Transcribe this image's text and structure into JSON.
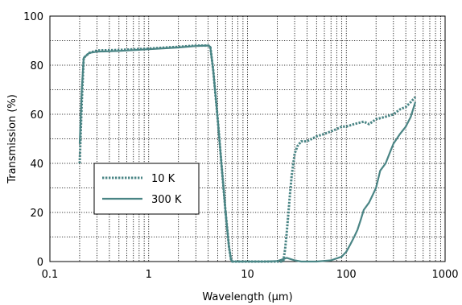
{
  "chart_data": {
    "type": "line",
    "xlabel": "Wavelength (µm)",
    "ylabel": "Transmission (%)",
    "xscale": "log",
    "xlim": [
      0.1,
      1000
    ],
    "ylim": [
      0,
      100
    ],
    "xticks": [
      0.1,
      1,
      10,
      100,
      1000
    ],
    "xtick_labels": [
      "0.1",
      "1",
      "10",
      "100",
      "1000"
    ],
    "yticks": [
      0,
      20,
      40,
      60,
      80,
      100
    ],
    "ytick_labels": [
      "0",
      "20",
      "40",
      "60",
      "80",
      "100"
    ],
    "grid": true,
    "grid_style": "dotted",
    "line_color": "#4a8585",
    "legend_position": "center-left",
    "series": [
      {
        "name": "10 K",
        "style": "dotted",
        "x": [
          0.2,
          0.21,
          0.22,
          0.25,
          0.3,
          0.5,
          1,
          2,
          3,
          4,
          4.2,
          4.5,
          5,
          5.5,
          6,
          6.5,
          6.8,
          7,
          8,
          10,
          15,
          20,
          23,
          24,
          25,
          26,
          27,
          28,
          30,
          32,
          35,
          40,
          50,
          60,
          70,
          80,
          90,
          100,
          120,
          150,
          170,
          200,
          250,
          300,
          350,
          400,
          450,
          500
        ],
        "y": [
          40,
          65,
          83,
          85,
          86,
          86.2,
          86.8,
          87.5,
          88,
          88,
          87.5,
          78,
          58,
          38,
          20,
          6,
          1,
          0,
          0,
          0,
          0,
          0,
          0,
          5,
          12,
          20,
          28,
          35,
          44,
          47,
          49,
          49,
          51,
          52,
          53,
          54,
          55,
          55,
          56,
          57,
          56,
          58,
          59,
          60,
          62,
          63,
          65,
          67
        ]
      },
      {
        "name": "300 K",
        "style": "solid",
        "x": [
          0.2,
          0.21,
          0.22,
          0.25,
          0.3,
          0.5,
          1,
          2,
          3,
          4,
          4.2,
          4.5,
          5,
          5.5,
          6,
          6.5,
          6.8,
          7,
          8,
          10,
          15,
          20,
          25,
          30,
          35,
          50,
          70,
          90,
          100,
          110,
          120,
          130,
          140,
          150,
          170,
          200,
          220,
          250,
          280,
          300,
          350,
          400,
          450,
          500
        ],
        "y": [
          48,
          70,
          83,
          85,
          85.5,
          85.8,
          86.5,
          87.2,
          87.8,
          88,
          87.5,
          78,
          58,
          38,
          20,
          6,
          1,
          0,
          0,
          0,
          0,
          0.2,
          1.5,
          0.5,
          0,
          0,
          0.5,
          2,
          4,
          7,
          10,
          13,
          17,
          21,
          24,
          30,
          37,
          40,
          45,
          48,
          52,
          55,
          59,
          65
        ]
      }
    ]
  }
}
